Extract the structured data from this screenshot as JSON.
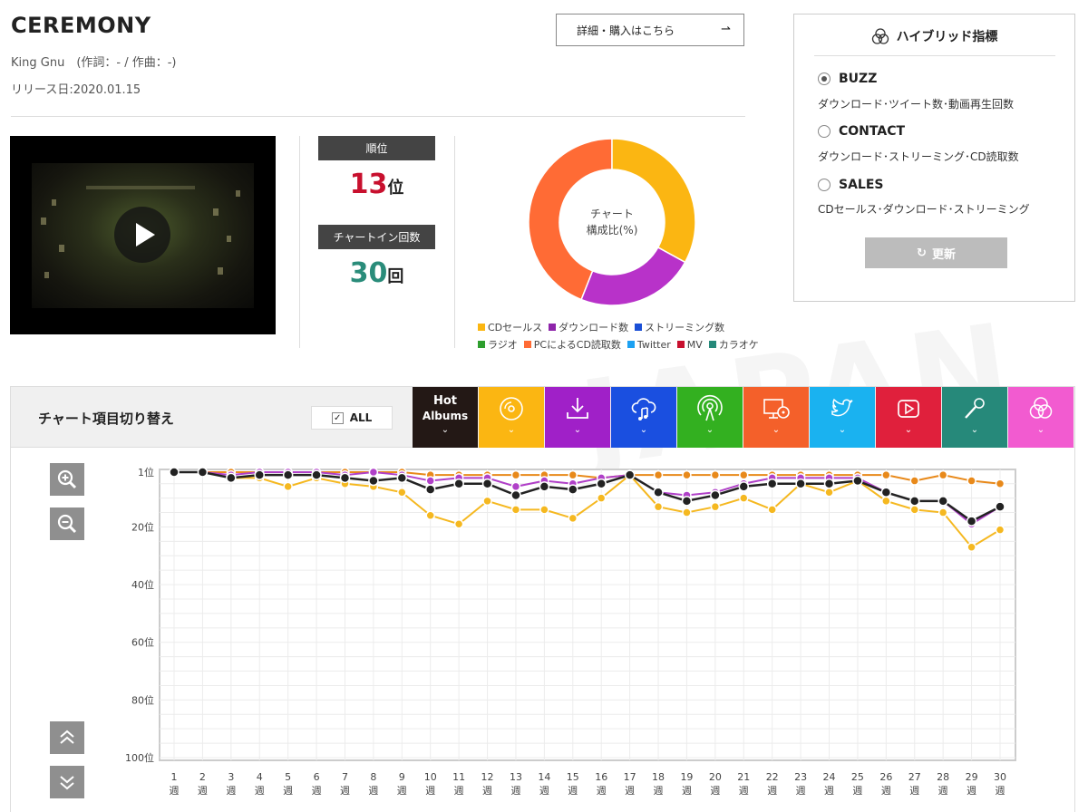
{
  "song": {
    "title": "CEREMONY",
    "artist_line": "King Gnu　(作詞：- / 作曲：-)",
    "release": "リリース日:2020.01.15"
  },
  "detail_button": {
    "label": "詳細・購入はこちら",
    "arrow": "⇀"
  },
  "stats": {
    "rank_label": "順位",
    "rank_value": "13",
    "rank_unit": "位",
    "chartin_label": "チャートイン回数",
    "chartin_value": "30",
    "chartin_unit": "回",
    "rank_color": "#c8102e",
    "chartin_color": "#2a8c7a"
  },
  "donut": {
    "center_line1": "チャート",
    "center_line2": "構成比(%)",
    "segments": [
      {
        "name": "CDセールス",
        "value": 33,
        "color": "#fbb612"
      },
      {
        "name": "ダウンロード数",
        "value": 23,
        "color": "#b832c9"
      },
      {
        "name": "PCによるCD読取数",
        "value": 44,
        "color": "#ff6b35"
      }
    ]
  },
  "legend": [
    {
      "label": "CDセールス",
      "color": "#fbb612"
    },
    {
      "label": "ダウンロード数",
      "color": "#8e24aa"
    },
    {
      "label": "ストリーミング数",
      "color": "#1a4fd6"
    },
    {
      "label": "ラジオ",
      "color": "#2e9e2e"
    },
    {
      "label": "PCによるCD読取数",
      "color": "#ff6b35"
    },
    {
      "label": "Twitter",
      "color": "#1da1f2"
    },
    {
      "label": "MV",
      "color": "#c8102e"
    },
    {
      "label": "カラオケ",
      "color": "#26897a"
    }
  ],
  "hybrid": {
    "title": "ハイブリッド指標",
    "options": [
      {
        "label": "BUZZ",
        "desc": "ダウンロード･ツイート数･動画再生回数",
        "selected": true
      },
      {
        "label": "CONTACT",
        "desc": "ダウンロード･ストリーミング･CD読取数",
        "selected": false
      },
      {
        "label": "SALES",
        "desc": "CDセールス･ダウンロード･ストリーミング",
        "selected": false
      }
    ],
    "refresh_label": "更新",
    "refresh_icon": "↻"
  },
  "switcher": {
    "label": "チャート項目切り替え",
    "all_label": "ALL",
    "all_checked": "✓",
    "tabs": [
      {
        "name": "hot-albums",
        "line1": "Hot",
        "line2": "Albums",
        "color": "#231815",
        "icon": "text"
      },
      {
        "name": "cd-sales",
        "color": "#fbb612",
        "icon": "disc"
      },
      {
        "name": "download",
        "color": "#a020c8",
        "icon": "download"
      },
      {
        "name": "streaming",
        "color": "#1a4fe0",
        "icon": "cloud-music"
      },
      {
        "name": "radio",
        "color": "#33b020",
        "icon": "radio"
      },
      {
        "name": "pc-read",
        "color": "#f4602a",
        "icon": "monitor-disc"
      },
      {
        "name": "twitter",
        "color": "#1ab2f0",
        "icon": "bird"
      },
      {
        "name": "mv",
        "color": "#e0203c",
        "icon": "play"
      },
      {
        "name": "karaoke",
        "color": "#26897a",
        "icon": "mic"
      },
      {
        "name": "hybrid",
        "color": "#f25bd0",
        "icon": "circles"
      }
    ],
    "chevron": "⌄"
  },
  "chart_data": {
    "type": "line",
    "x": [
      "1",
      "2",
      "3",
      "4",
      "5",
      "6",
      "7",
      "8",
      "9",
      "10",
      "11",
      "12",
      "13",
      "14",
      "15",
      "16",
      "17",
      "18",
      "19",
      "20",
      "21",
      "22",
      "23",
      "24",
      "25",
      "26",
      "27",
      "28",
      "29",
      "30"
    ],
    "x_suffix": "週",
    "y_ticks": [
      "1位",
      "20位",
      "40位",
      "60位",
      "80位",
      "100位"
    ],
    "y_tick_values": [
      1,
      20,
      40,
      60,
      80,
      100
    ],
    "ylim": [
      1,
      100
    ],
    "y_inverted": true,
    "grid": true,
    "series": [
      {
        "name": "PCによるCD読取数",
        "color": "#e8891a",
        "values": [
          1,
          1,
          1,
          1,
          1,
          1,
          1,
          1,
          1,
          2,
          2,
          2,
          2,
          2,
          2,
          3,
          2,
          2,
          2,
          2,
          2,
          2,
          2,
          2,
          2,
          2,
          4,
          2,
          4,
          5
        ]
      },
      {
        "name": "ダウンロード数",
        "color": "#b040c8",
        "values": [
          1,
          1,
          2,
          1,
          1,
          1,
          2,
          1,
          2,
          4,
          3,
          3,
          6,
          4,
          5,
          3,
          2,
          8,
          9,
          8,
          5,
          3,
          3,
          3,
          3,
          8,
          11,
          11,
          19,
          13
        ]
      },
      {
        "name": "CDセールス",
        "color": "#f5b820",
        "values": [
          1,
          1,
          3,
          3,
          6,
          3,
          5,
          6,
          8,
          16,
          19,
          11,
          14,
          14,
          17,
          10,
          2,
          13,
          15,
          13,
          10,
          14,
          5,
          8,
          4,
          11,
          14,
          15,
          27,
          21
        ]
      },
      {
        "name": "Hot Albums",
        "color": "#222222",
        "values": [
          1,
          1,
          3,
          2,
          2,
          2,
          3,
          4,
          3,
          7,
          5,
          5,
          9,
          6,
          7,
          5,
          2,
          8,
          11,
          9,
          6,
          5,
          5,
          5,
          4,
          8,
          11,
          11,
          18,
          13
        ]
      }
    ]
  },
  "controls": {
    "zoom_in": "+",
    "zoom_out": "−",
    "top": "︽",
    "bottom": "︾"
  },
  "watermark": "JAPAN"
}
